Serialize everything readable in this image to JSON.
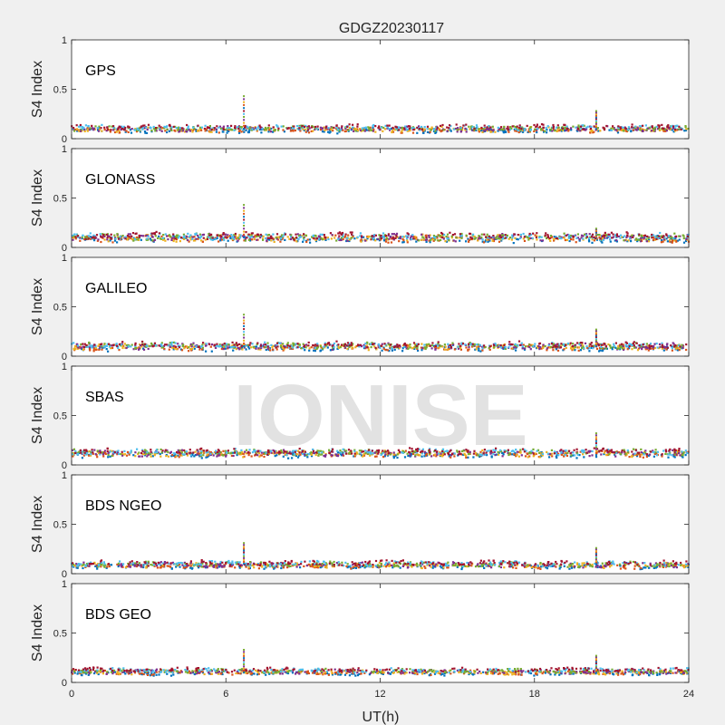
{
  "title": "GDGZ20230117",
  "xlabel": "UT(h)",
  "watermark": "IONISE",
  "colors": {
    "background": "#f0f0f0",
    "axes_bg": "#ffffff",
    "axis_line": "#262626",
    "series": [
      "#0072bd",
      "#d95319",
      "#edb120",
      "#7e2f8e",
      "#77ac30",
      "#4dbeee",
      "#a2142f"
    ]
  },
  "chart_data": [
    {
      "type": "scatter",
      "label": "GPS",
      "ylabel": "S4 Index",
      "xlim": [
        0,
        24
      ],
      "ylim": [
        0,
        1
      ],
      "xticks": [
        "0",
        "6",
        "12",
        "18",
        "24"
      ],
      "yticks": [
        "0",
        "0.5",
        "1"
      ],
      "baseline": 0.09,
      "spread": 0.04,
      "spikes": [
        {
          "x": 6.7,
          "y": 0.43
        },
        {
          "x": 20.4,
          "y": 0.28
        }
      ]
    },
    {
      "type": "scatter",
      "label": "GLONASS",
      "ylabel": "S4 Index",
      "xlim": [
        0,
        24
      ],
      "ylim": [
        0,
        1
      ],
      "xticks": [
        "0",
        "6",
        "12",
        "18",
        "24"
      ],
      "yticks": [
        "0",
        "0.5",
        "1"
      ],
      "baseline": 0.09,
      "spread": 0.06,
      "spikes": [
        {
          "x": 6.7,
          "y": 0.43
        },
        {
          "x": 20.4,
          "y": 0.19
        }
      ]
    },
    {
      "type": "scatter",
      "label": "GALILEO",
      "ylabel": "S4 Index",
      "xlim": [
        0,
        24
      ],
      "ylim": [
        0,
        1
      ],
      "xticks": [
        "0",
        "6",
        "12",
        "18",
        "24"
      ],
      "yticks": [
        "0",
        "0.5",
        "1"
      ],
      "baseline": 0.09,
      "spread": 0.05,
      "spikes": [
        {
          "x": 6.7,
          "y": 0.42
        },
        {
          "x": 20.4,
          "y": 0.27
        }
      ]
    },
    {
      "type": "scatter",
      "label": "SBAS",
      "ylabel": "S4 Index",
      "xlim": [
        0,
        24
      ],
      "ylim": [
        0,
        1
      ],
      "xticks": [
        "0",
        "6",
        "12",
        "18",
        "24"
      ],
      "yticks": [
        "0",
        "0.5",
        "1"
      ],
      "baseline": 0.11,
      "spread": 0.05,
      "spikes": [
        {
          "x": 20.4,
          "y": 0.32
        }
      ]
    },
    {
      "type": "scatter",
      "label": "BDS NGEO",
      "ylabel": "S4 Index",
      "xlim": [
        0,
        24
      ],
      "ylim": [
        0,
        1
      ],
      "xticks": [
        "0",
        "6",
        "12",
        "18",
        "24"
      ],
      "yticks": [
        "0",
        "0.5",
        "1"
      ],
      "baseline": 0.08,
      "spread": 0.04,
      "spikes": [
        {
          "x": 6.7,
          "y": 0.31
        },
        {
          "x": 20.4,
          "y": 0.26
        }
      ]
    },
    {
      "type": "scatter",
      "label": "BDS GEO",
      "ylabel": "S4 Index",
      "xlim": [
        0,
        24
      ],
      "ylim": [
        0,
        1
      ],
      "xticks": [
        "0",
        "6",
        "12",
        "18",
        "24"
      ],
      "yticks": [
        "0",
        "0.5",
        "1"
      ],
      "baseline": 0.1,
      "spread": 0.03,
      "spikes": [
        {
          "x": 6.7,
          "y": 0.33
        },
        {
          "x": 20.4,
          "y": 0.27
        }
      ]
    }
  ]
}
